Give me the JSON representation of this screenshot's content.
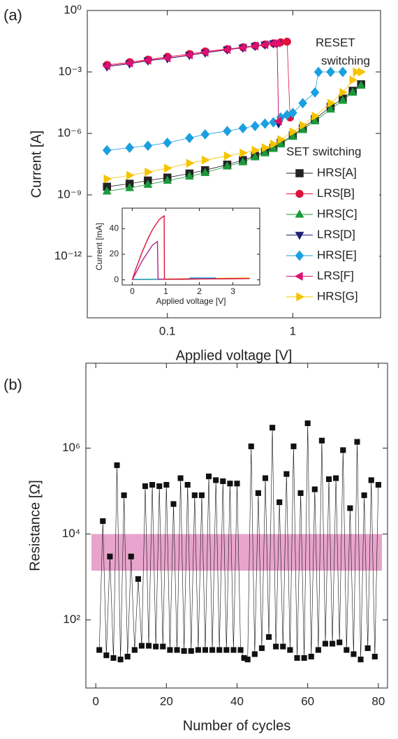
{
  "chart_data": [
    {
      "type": "line",
      "panel_label": "(a)",
      "x_label": "Applied voltage [V]",
      "y_label": "Current [A]",
      "xscale": "log",
      "yscale": "log",
      "xlim": [
        0.023,
        5
      ],
      "ylim": [
        1e-15,
        1
      ],
      "xticks": [
        0.1,
        1
      ],
      "yticks": [
        {
          "value": 1,
          "label": "10⁰"
        },
        {
          "value": 0.001,
          "label": "10⁻³"
        },
        {
          "value": 1e-06,
          "label": "10⁻⁶"
        },
        {
          "value": 1e-09,
          "label": "10⁻⁹"
        },
        {
          "value": 1e-12,
          "label": "10⁻¹²"
        }
      ],
      "annotations": [
        "RESET",
        "switching",
        "SET switching"
      ],
      "legend": "right",
      "series": [
        {
          "name": "HRS[A]",
          "color": "#222222",
          "marker": "square",
          "x": [
            0.033,
            0.05,
            0.07,
            0.1,
            0.15,
            0.2,
            0.3,
            0.4,
            0.5,
            0.6,
            0.7,
            0.8,
            1,
            1.2,
            1.5,
            2,
            2.5,
            3,
            3.5
          ],
          "values": [
            2.5e-09,
            3.5e-09,
            5e-09,
            7e-09,
            1.1e-08,
            1.6e-08,
            3e-08,
            5e-08,
            8e-08,
            1.3e-07,
            2e-07,
            3.5e-07,
            8e-07,
            1.8e-06,
            5e-06,
            2e-05,
            5e-05,
            0.00012,
            0.00025
          ]
        },
        {
          "name": "LRS[B]",
          "color": "#e0103c",
          "marker": "circle",
          "x": [
            0.033,
            0.05,
            0.07,
            0.1,
            0.15,
            0.2,
            0.3,
            0.4,
            0.5,
            0.6,
            0.7,
            0.8,
            0.9,
            0.95
          ],
          "values": [
            0.0022,
            0.003,
            0.004,
            0.0055,
            0.0075,
            0.01,
            0.013,
            0.016,
            0.019,
            0.022,
            0.025,
            0.028,
            0.03,
            6e-06
          ]
        },
        {
          "name": "HRS[C]",
          "color": "#1a9a3a",
          "marker": "triangle-up",
          "x": [
            0.033,
            0.05,
            0.07,
            0.1,
            0.15,
            0.2,
            0.3,
            0.4,
            0.5,
            0.6,
            0.7,
            0.8,
            1,
            1.2,
            1.5,
            2,
            2.5,
            3,
            3.5
          ],
          "values": [
            1.5e-09,
            2.2e-09,
            3.2e-09,
            5e-09,
            8e-09,
            1.2e-08,
            2.5e-08,
            4e-08,
            7e-08,
            1.1e-07,
            1.8e-07,
            3e-07,
            7e-07,
            1.5e-06,
            4e-06,
            1.5e-05,
            4e-05,
            0.0001,
            0.00022
          ]
        },
        {
          "name": "LRS[D]",
          "color": "#20207a",
          "marker": "triangle-down",
          "x": [
            0.033,
            0.05,
            0.07,
            0.1,
            0.15,
            0.2,
            0.3,
            0.4,
            0.5,
            0.6,
            0.7,
            0.75,
            0.77
          ],
          "values": [
            0.0018,
            0.0025,
            0.0035,
            0.0045,
            0.0065,
            0.0085,
            0.012,
            0.015,
            0.018,
            0.021,
            0.024,
            0.025,
            3e-06
          ]
        },
        {
          "name": "HRS[E]",
          "color": "#1aa0e0",
          "marker": "diamond",
          "x": [
            0.033,
            0.05,
            0.07,
            0.1,
            0.15,
            0.2,
            0.3,
            0.4,
            0.5,
            0.6,
            0.7,
            0.8,
            0.9,
            1,
            1.2,
            1.5,
            1.6,
            2,
            2.5
          ],
          "values": [
            1.5e-07,
            2e-07,
            2.5e-07,
            3.5e-07,
            6e-07,
            9e-07,
            1.3e-06,
            1.8e-06,
            2.3e-06,
            3e-06,
            3.5e-06,
            6e-06,
            8e-06,
            1e-05,
            3e-05,
            0.0001,
            0.001,
            0.001,
            0.001
          ]
        },
        {
          "name": "LRS[F]",
          "color": "#e0106e",
          "marker": "triangle-left",
          "x": [
            0.033,
            0.05,
            0.07,
            0.1,
            0.15,
            0.2,
            0.3,
            0.4,
            0.5,
            0.6,
            0.7,
            0.75,
            0.77
          ],
          "values": [
            0.002,
            0.0027,
            0.0037,
            0.0048,
            0.0068,
            0.009,
            0.0125,
            0.0155,
            0.0185,
            0.0215,
            0.0245,
            0.026,
            4e-06
          ]
        },
        {
          "name": "HRS[G]",
          "color": "#f5c400",
          "marker": "triangle-right",
          "x": [
            0.033,
            0.05,
            0.07,
            0.1,
            0.15,
            0.2,
            0.3,
            0.4,
            0.5,
            0.6,
            0.7,
            0.8,
            1,
            1.2,
            1.5,
            2,
            2.5,
            3,
            3.2,
            3.5
          ],
          "values": [
            6e-09,
            9e-09,
            1.3e-08,
            2e-08,
            3.5e-08,
            5e-08,
            8e-08,
            1.1e-07,
            1.5e-07,
            2e-07,
            3e-07,
            5e-07,
            1.2e-06,
            2.5e-06,
            7e-06,
            3e-05,
            0.0001,
            0.0004,
            0.001,
            0.001
          ]
        }
      ]
    },
    {
      "type": "line",
      "x_label": "Applied voltage [V]",
      "y_label": "Current [mA]",
      "xlim": [
        -0.3,
        3.8
      ],
      "ylim": [
        -4,
        56
      ],
      "xticks": [
        0,
        1,
        2,
        3
      ],
      "yticks": [
        0,
        20,
        40
      ],
      "series": [
        {
          "color": "#1a9a3a",
          "x": [
            0,
            3.5
          ],
          "values": [
            0.2,
            1.2
          ]
        },
        {
          "color": "#f5c400",
          "x": [
            0,
            3.5
          ],
          "values": [
            0.3,
            1.5
          ]
        },
        {
          "color": "#1aa0e0",
          "x": [
            0,
            1.7,
            1.72,
            2.5
          ],
          "values": [
            0.3,
            0.5,
            1.5,
            1.5
          ]
        },
        {
          "color": "#b0208a",
          "x": [
            0,
            0.1,
            0.2,
            0.3,
            0.4,
            0.5,
            0.6,
            0.7,
            0.75,
            0.77,
            3.5
          ],
          "values": [
            0,
            5,
            10,
            15,
            19,
            23,
            27,
            29,
            30,
            0.5,
            1
          ]
        },
        {
          "color": "#e0103c",
          "x": [
            0,
            0.1,
            0.2,
            0.3,
            0.4,
            0.5,
            0.6,
            0.7,
            0.8,
            0.9,
            0.95,
            0.96,
            3.5
          ],
          "values": [
            0,
            8,
            15,
            22,
            28,
            34,
            39,
            43,
            47,
            49,
            50,
            0.5,
            1
          ]
        }
      ]
    },
    {
      "type": "scatter",
      "panel_label": "(b)",
      "x_label": "Number of cycles",
      "y_label": "Resistance [Ω]",
      "yscale": "log",
      "xlim": [
        -2.8,
        82.6
      ],
      "ylim": [
        2.6,
        95000000
      ],
      "xticks": [
        0,
        20,
        40,
        60,
        80
      ],
      "yticks": [
        {
          "value": 100,
          "label": "10²"
        },
        {
          "value": 10000,
          "label": "10⁴"
        },
        {
          "value": 1000000,
          "label": "10⁶"
        }
      ],
      "band": [
        1400,
        10000
      ],
      "band_color": "#e8a4cc",
      "color": "#111111",
      "x": [
        1,
        2,
        3,
        4,
        5,
        6,
        7,
        8,
        9,
        10,
        11,
        12,
        13,
        14,
        15,
        16,
        17,
        18,
        19,
        20,
        21,
        22,
        23,
        24,
        25,
        26,
        27,
        28,
        29,
        30,
        31,
        32,
        33,
        34,
        35,
        36,
        37,
        38,
        39,
        40,
        41,
        42,
        43,
        44,
        45,
        46,
        47,
        48,
        49,
        50,
        51,
        52,
        53,
        54,
        55,
        56,
        57,
        58,
        59,
        60,
        61,
        62,
        63,
        64,
        65,
        66,
        67,
        68,
        69,
        70,
        71,
        72,
        73,
        74,
        75,
        76,
        77,
        78,
        79,
        80
      ],
      "values": [
        20,
        20000,
        15,
        3000,
        13,
        400000,
        12,
        80000,
        14,
        3000,
        20,
        900,
        25,
        130000,
        25,
        140000,
        24,
        130000,
        24,
        140000,
        20,
        50000,
        20,
        200000,
        19,
        140000,
        19,
        80000,
        20,
        80000,
        20,
        220000,
        20,
        180000,
        20,
        170000,
        20,
        150000,
        20,
        150000,
        20,
        13,
        12,
        1100000,
        16,
        90000,
        22,
        200000,
        40,
        3000000,
        24,
        55000,
        24,
        250000,
        20,
        1100000,
        13,
        90000,
        13,
        3800000,
        14,
        110000,
        20,
        1500000,
        28,
        190000,
        28,
        200000,
        30,
        900000,
        20,
        40000,
        16,
        1400000,
        12,
        80000,
        22,
        180000,
        14,
        140000
      ]
    }
  ]
}
